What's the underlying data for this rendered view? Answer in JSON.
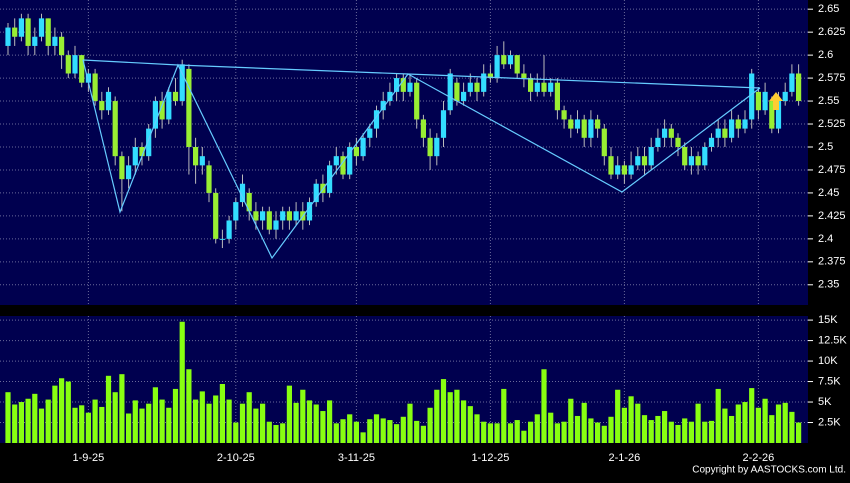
{
  "chart_data": [
    {
      "type": "candlestick",
      "categories": [
        null,
        null,
        null,
        null,
        null,
        null,
        null,
        null,
        null,
        null,
        null,
        null,
        "1-9-25",
        null,
        null,
        null,
        null,
        null,
        null,
        null,
        null,
        null,
        null,
        null,
        null,
        null,
        null,
        null,
        null,
        null,
        null,
        null,
        null,
        null,
        "2-10-25",
        null,
        null,
        null,
        null,
        null,
        null,
        null,
        null,
        null,
        null,
        null,
        null,
        null,
        null,
        null,
        null,
        null,
        "3-11-25",
        null,
        null,
        null,
        null,
        null,
        null,
        null,
        null,
        null,
        null,
        null,
        null,
        null,
        null,
        null,
        null,
        null,
        null,
        null,
        "1-12-25",
        null,
        null,
        null,
        null,
        null,
        null,
        null,
        null,
        null,
        null,
        null,
        null,
        null,
        null,
        null,
        null,
        null,
        null,
        null,
        "2-1-26",
        null,
        null,
        null,
        null,
        null,
        null,
        null,
        null,
        null,
        null,
        null,
        null,
        null,
        null,
        null,
        null,
        null,
        null,
        null,
        "2-2-26",
        null,
        null,
        null,
        null,
        null,
        null
      ],
      "open": [
        2.61,
        2.63,
        2.62,
        2.64,
        2.61,
        2.62,
        2.64,
        2.61,
        2.62,
        2.6,
        2.58,
        2.6,
        2.57,
        2.58,
        2.55,
        2.54,
        2.55,
        2.49,
        2.465,
        2.48,
        2.5,
        2.49,
        2.52,
        2.55,
        2.53,
        2.56,
        2.55,
        2.585,
        2.5,
        2.48,
        2.48,
        2.45,
        2.4,
        2.4,
        2.42,
        2.44,
        2.45,
        2.43,
        2.42,
        2.43,
        2.41,
        2.42,
        2.43,
        2.42,
        2.43,
        2.42,
        2.44,
        2.46,
        2.45,
        2.48,
        2.49,
        2.47,
        2.5,
        2.49,
        2.51,
        2.52,
        2.54,
        2.55,
        2.56,
        2.575,
        2.56,
        2.57,
        2.53,
        2.51,
        2.49,
        2.51,
        2.54,
        2.57,
        2.55,
        2.56,
        2.57,
        2.56,
        2.58,
        2.575,
        2.6,
        2.59,
        2.6,
        2.58,
        2.575,
        2.56,
        2.57,
        2.56,
        2.57,
        2.54,
        2.53,
        2.52,
        2.53,
        2.51,
        2.53,
        2.52,
        2.49,
        2.47,
        2.48,
        2.47,
        2.48,
        2.49,
        2.48,
        2.5,
        2.51,
        2.52,
        2.51,
        2.5,
        2.48,
        2.49,
        2.48,
        2.5,
        2.51,
        2.52,
        2.51,
        2.53,
        2.52,
        2.53,
        2.56,
        2.54,
        2.55,
        2.52,
        2.55,
        2.56,
        2.58
      ],
      "close": [
        2.63,
        2.62,
        2.64,
        2.61,
        2.62,
        2.64,
        2.61,
        2.62,
        2.6,
        2.58,
        2.6,
        2.57,
        2.58,
        2.55,
        2.54,
        2.56,
        2.49,
        2.465,
        2.48,
        2.5,
        2.49,
        2.52,
        2.55,
        2.53,
        2.56,
        2.55,
        2.59,
        2.5,
        2.48,
        2.49,
        2.45,
        2.4,
        2.4,
        2.42,
        2.44,
        2.46,
        2.43,
        2.42,
        2.43,
        2.41,
        2.42,
        2.43,
        2.42,
        2.43,
        2.42,
        2.44,
        2.46,
        2.45,
        2.48,
        2.49,
        2.47,
        2.5,
        2.49,
        2.51,
        2.52,
        2.54,
        2.55,
        2.56,
        2.575,
        2.56,
        2.57,
        2.53,
        2.51,
        2.49,
        2.51,
        2.54,
        2.58,
        2.55,
        2.56,
        2.57,
        2.56,
        2.58,
        2.575,
        2.6,
        2.59,
        2.6,
        2.58,
        2.575,
        2.56,
        2.57,
        2.56,
        2.57,
        2.54,
        2.53,
        2.52,
        2.53,
        2.51,
        2.53,
        2.52,
        2.49,
        2.47,
        2.48,
        2.47,
        2.48,
        2.49,
        2.48,
        2.5,
        2.51,
        2.52,
        2.51,
        2.5,
        2.48,
        2.49,
        2.48,
        2.5,
        2.51,
        2.52,
        2.51,
        2.53,
        2.52,
        2.53,
        2.58,
        2.54,
        2.56,
        2.52,
        2.55,
        2.56,
        2.58,
        2.55
      ],
      "high": [
        2.635,
        2.64,
        2.645,
        2.645,
        2.63,
        2.645,
        2.64,
        2.63,
        2.625,
        2.605,
        2.61,
        2.6,
        2.585,
        2.585,
        2.56,
        2.565,
        2.555,
        2.495,
        2.49,
        2.51,
        2.505,
        2.525,
        2.555,
        2.56,
        2.565,
        2.575,
        2.595,
        2.59,
        2.51,
        2.5,
        2.485,
        2.455,
        2.41,
        2.425,
        2.445,
        2.47,
        2.455,
        2.44,
        2.435,
        2.435,
        2.43,
        2.435,
        2.435,
        2.44,
        2.44,
        2.445,
        2.465,
        2.47,
        2.485,
        2.5,
        2.495,
        2.505,
        2.51,
        2.515,
        2.525,
        2.545,
        2.56,
        2.57,
        2.58,
        2.58,
        2.58,
        2.575,
        2.535,
        2.52,
        2.515,
        2.55,
        2.585,
        2.575,
        2.57,
        2.58,
        2.575,
        2.59,
        2.59,
        2.61,
        2.615,
        2.605,
        2.6,
        2.59,
        2.58,
        2.58,
        2.6,
        2.575,
        2.575,
        2.545,
        2.535,
        2.54,
        2.535,
        2.54,
        2.535,
        2.525,
        2.5,
        2.49,
        2.485,
        2.495,
        2.5,
        2.5,
        2.51,
        2.52,
        2.53,
        2.525,
        2.515,
        2.505,
        2.5,
        2.495,
        2.505,
        2.515,
        2.53,
        2.53,
        2.54,
        2.535,
        2.54,
        2.585,
        2.565,
        2.57,
        2.555,
        2.56,
        2.57,
        2.59,
        2.59
      ],
      "low": [
        2.6,
        2.61,
        2.615,
        2.6,
        2.6,
        2.615,
        2.6,
        2.6,
        2.585,
        2.575,
        2.575,
        2.565,
        2.56,
        2.545,
        2.53,
        2.535,
        2.48,
        2.43,
        2.455,
        2.47,
        2.48,
        2.485,
        2.51,
        2.52,
        2.525,
        2.545,
        2.545,
        2.47,
        2.46,
        2.47,
        2.44,
        2.395,
        2.39,
        2.395,
        2.41,
        2.435,
        2.42,
        2.41,
        2.41,
        2.405,
        2.4,
        2.41,
        2.41,
        2.415,
        2.41,
        2.415,
        2.435,
        2.44,
        2.445,
        2.47,
        2.465,
        2.465,
        2.48,
        2.485,
        2.5,
        2.51,
        2.53,
        2.545,
        2.55,
        2.55,
        2.555,
        2.52,
        2.5,
        2.475,
        2.48,
        2.5,
        2.535,
        2.545,
        2.545,
        2.555,
        2.55,
        2.555,
        2.57,
        2.57,
        2.585,
        2.585,
        2.575,
        2.565,
        2.55,
        2.555,
        2.555,
        2.555,
        2.53,
        2.52,
        2.51,
        2.515,
        2.5,
        2.5,
        2.51,
        2.48,
        2.465,
        2.465,
        2.46,
        2.465,
        2.475,
        2.47,
        2.475,
        2.495,
        2.5,
        2.5,
        2.49,
        2.475,
        2.47,
        2.47,
        2.475,
        2.495,
        2.5,
        2.5,
        2.505,
        2.51,
        2.515,
        2.52,
        2.53,
        2.535,
        2.515,
        2.515,
        2.545,
        2.555,
        2.545
      ],
      "up_color": "#33ddff",
      "down_color": "#99ee33",
      "ylim": [
        2.328,
        2.66
      ],
      "yticks": [
        2.35,
        2.375,
        2.4,
        2.425,
        2.45,
        2.475,
        2.5,
        2.525,
        2.55,
        2.575,
        2.6,
        2.625,
        2.65
      ],
      "grid": true
    },
    {
      "type": "bar",
      "values": [
        6200,
        4700,
        5000,
        5400,
        6000,
        4200,
        5300,
        7000,
        7900,
        7500,
        4300,
        4600,
        3700,
        5300,
        4400,
        8200,
        6200,
        8400,
        3600,
        5200,
        4200,
        4800,
        6800,
        5300,
        4300,
        6600,
        14800,
        9000,
        5300,
        6300,
        4800,
        5800,
        7200,
        5300,
        2500,
        4800,
        6200,
        4200,
        4800,
        2600,
        2200,
        2400,
        7000,
        4900,
        6500,
        5200,
        4700,
        3900,
        5200,
        2400,
        2900,
        3500,
        2600,
        1300,
        2900,
        3500,
        3000,
        2800,
        2300,
        3200,
        4800,
        2700,
        2100,
        4300,
        6500,
        7800,
        6200,
        6500,
        5200,
        4500,
        3500,
        2600,
        2400,
        2400,
        6600,
        2400,
        2800,
        1500,
        2600,
        3500,
        9000,
        3700,
        2400,
        2600,
        5400,
        3300,
        4900,
        3000,
        2500,
        2100,
        3200,
        6500,
        4300,
        5700,
        4800,
        3400,
        2800,
        3300,
        3900,
        2600,
        2200,
        3000,
        2600,
        4800,
        2600,
        2700,
        6600,
        4200,
        3300,
        4700,
        5000,
        6700,
        4300,
        5400,
        3400,
        4700,
        4900,
        3800,
        2500
      ],
      "color": "#88ff11",
      "ylim": [
        0,
        15500
      ],
      "yticks": [
        {
          "value": 2500,
          "label": "2.5K"
        },
        {
          "value": 5000,
          "label": "5K"
        },
        {
          "value": 7500,
          "label": "7.5K"
        },
        {
          "value": 10000,
          "label": "10K"
        },
        {
          "value": 12500,
          "label": "12.5K"
        },
        {
          "value": 15000,
          "label": "15K"
        }
      ],
      "grid": true,
      "copyright": "Copyright by AASTOCKS.com Ltd."
    }
  ]
}
